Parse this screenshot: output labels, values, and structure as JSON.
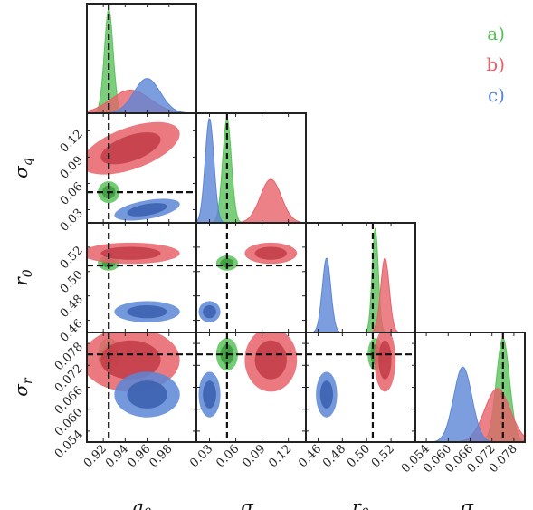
{
  "chart_data": {
    "type": "corner",
    "title": "",
    "parameters": [
      {
        "key": "q0",
        "label": "q",
        "sub": "0",
        "range": [
          0.905,
          1.005
        ],
        "ticks": [
          0.92,
          0.94,
          0.96,
          0.98
        ],
        "tick_labels": [
          "0.92",
          "0.94",
          "0.96",
          "0.98"
        ]
      },
      {
        "key": "sigma_q",
        "label": "σ",
        "sub": "q",
        "range": [
          0.015,
          0.14
        ],
        "ticks": [
          0.03,
          0.06,
          0.09,
          0.12
        ],
        "tick_labels": [
          "0.03",
          "0.06",
          "0.09",
          "0.12"
        ]
      },
      {
        "key": "r0",
        "label": "r",
        "sub": "0",
        "range": [
          0.45,
          0.54
        ],
        "ticks": [
          0.46,
          0.48,
          0.5,
          0.52
        ],
        "tick_labels": [
          "0.46",
          "0.48",
          "0.50",
          "0.52"
        ]
      },
      {
        "key": "sigma_r",
        "label": "σ",
        "sub": "r",
        "range": [
          0.051,
          0.081
        ],
        "ticks": [
          0.054,
          0.06,
          0.066,
          0.072,
          0.078
        ],
        "tick_labels": [
          "0.054",
          "0.060",
          "0.066",
          "0.072",
          "0.078"
        ]
      }
    ],
    "truths": [
      0.925,
      0.05,
      0.505,
      0.075
    ],
    "series": [
      {
        "name": "a)",
        "color": "#5ac25a",
        "dark": "#3f9b3f",
        "mean": [
          0.925,
          0.05,
          0.507,
          0.075
        ],
        "sd": [
          0.004,
          0.005,
          0.0025,
          0.0018
        ],
        "corr": [
          [
            1,
            0,
            0,
            0
          ],
          [
            0,
            1,
            0,
            0
          ],
          [
            0,
            0,
            1,
            0
          ],
          [
            0,
            0,
            0,
            1
          ]
        ]
      },
      {
        "name": "b)",
        "color": "#e8616a",
        "dark": "#c43e48",
        "mean": [
          0.945,
          0.1,
          0.515,
          0.0735
        ],
        "sd": [
          0.018,
          0.012,
          0.0035,
          0.0035
        ],
        "corr": [
          [
            1,
            0.55,
            0,
            0
          ],
          [
            0.55,
            1,
            0,
            0
          ],
          [
            0,
            0,
            1,
            0
          ],
          [
            0,
            0,
            0,
            1
          ]
        ]
      },
      {
        "name": "c)",
        "color": "#5b86d6",
        "dark": "#3d62b0",
        "mean": [
          0.96,
          0.03,
          0.467,
          0.064
        ],
        "sd": [
          0.012,
          0.005,
          0.0035,
          0.0025
        ],
        "corr": [
          [
            1,
            0.5,
            0,
            0
          ],
          [
            0.5,
            1,
            0,
            0
          ],
          [
            0,
            0,
            1,
            0
          ],
          [
            0,
            0,
            0,
            1
          ]
        ]
      }
    ],
    "legend_position": "top-right"
  }
}
